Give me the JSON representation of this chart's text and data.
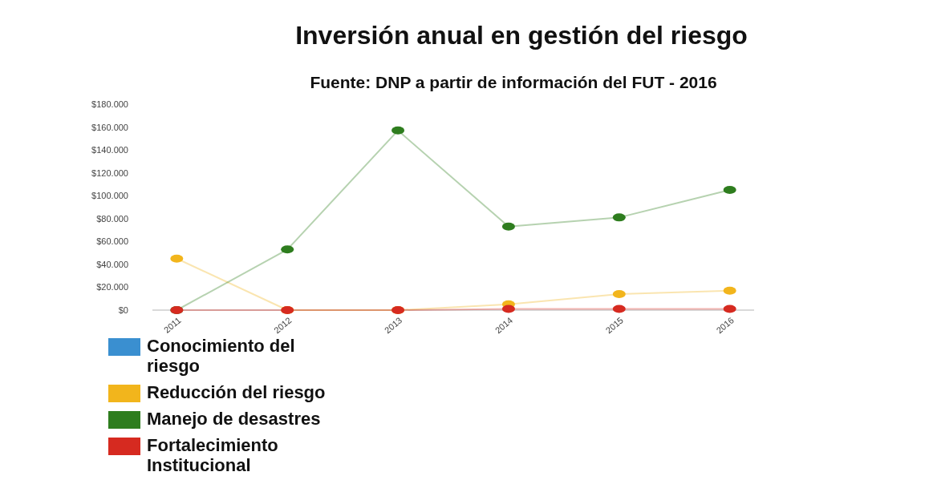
{
  "chart_data": {
    "type": "line",
    "title": "Inversión anual en gestión del riesgo",
    "subtitle": "Fuente: DNP a partir de información del FUT - 2016",
    "categories": [
      "2011",
      "2012",
      "2013",
      "2014",
      "2015",
      "2016"
    ],
    "series": [
      {
        "name": "Conocimiento del riesgo",
        "color": "#3a8fd0",
        "values": [
          null,
          null,
          null,
          null,
          null,
          null
        ]
      },
      {
        "name": "Reducción del riesgo",
        "color": "#f2b51c",
        "values": [
          45000,
          0,
          0,
          5000,
          14000,
          17000
        ]
      },
      {
        "name": "Manejo de desastres",
        "color": "#2e7d1e",
        "values": [
          0,
          53000,
          157000,
          73000,
          81000,
          105000
        ]
      },
      {
        "name": "Fortalecimiento Institucional",
        "color": "#d62a20",
        "values": [
          0,
          0,
          0,
          1000,
          1000,
          1000
        ]
      }
    ],
    "ylim": [
      0,
      180000
    ],
    "yticks": [
      {
        "value": 0,
        "label": "$0"
      },
      {
        "value": 20000,
        "label": "$20.000"
      },
      {
        "value": 40000,
        "label": "$40.000"
      },
      {
        "value": 60000,
        "label": "$60.000"
      },
      {
        "value": 80000,
        "label": "$80.000"
      },
      {
        "value": 100000,
        "label": "$100.000"
      },
      {
        "value": 120000,
        "label": "$120.000"
      },
      {
        "value": 140000,
        "label": "$140.000"
      },
      {
        "value": 160000,
        "label": "$160.000"
      },
      {
        "value": 180000,
        "label": "$180.000"
      }
    ],
    "marker": "circle",
    "legend": "bottom left"
  }
}
